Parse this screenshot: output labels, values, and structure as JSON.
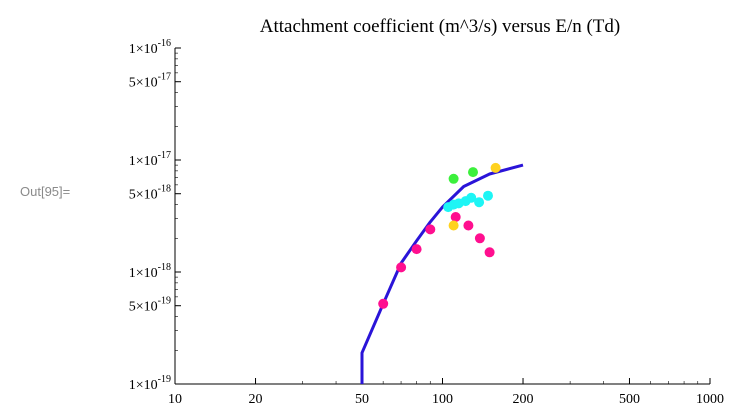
{
  "cell": {
    "out_label": "Out[95]="
  },
  "chart_data": {
    "type": "scatter",
    "title": "Attachment coefficient (m^3/s) versus E/n (Td)",
    "xlabel": "",
    "ylabel": "",
    "x_scale": "log",
    "y_scale": "log",
    "xlim": [
      10,
      1000
    ],
    "ylim": [
      1e-19,
      1e-16
    ],
    "x_ticks": [
      {
        "value": 10,
        "label": "10"
      },
      {
        "value": 20,
        "label": "20"
      },
      {
        "value": 50,
        "label": "50"
      },
      {
        "value": 100,
        "label": "100"
      },
      {
        "value": 200,
        "label": "200"
      },
      {
        "value": 500,
        "label": "500"
      },
      {
        "value": 1000,
        "label": "1000"
      }
    ],
    "y_ticks": [
      {
        "value": 1e-19,
        "mantissa": "1",
        "exponent": "-19"
      },
      {
        "value": 5e-19,
        "mantissa": "5",
        "exponent": "-19"
      },
      {
        "value": 1e-18,
        "mantissa": "1",
        "exponent": "-18"
      },
      {
        "value": 5e-18,
        "mantissa": "5",
        "exponent": "-18"
      },
      {
        "value": 1e-17,
        "mantissa": "1",
        "exponent": "-17"
      },
      {
        "value": 5e-17,
        "mantissa": "5",
        "exponent": "-17"
      },
      {
        "value": 1e-16,
        "mantissa": "1",
        "exponent": "-16"
      }
    ],
    "grid": false,
    "colors": {
      "line": "#2a14d8",
      "axis": "#000000"
    },
    "line": {
      "x": [
        50,
        50,
        60,
        70,
        80,
        90,
        100,
        120,
        150,
        200
      ],
      "y": [
        1e-19,
        1.9e-19,
        5.2e-19,
        1.2e-18,
        1.9e-18,
        2.8e-18,
        3.8e-18,
        5.8e-18,
        7.5e-18,
        9e-18
      ]
    },
    "series": [
      {
        "color": "#ff0f8f",
        "x": [
          60,
          70,
          80,
          90,
          112,
          125,
          138,
          150
        ],
        "y": [
          5.2e-19,
          1.1e-18,
          1.6e-18,
          2.4e-18,
          3.1e-18,
          2.6e-18,
          2e-18,
          1.5e-18
        ]
      },
      {
        "color": "#1ef5f5",
        "x": [
          105,
          110,
          115,
          122,
          128,
          137,
          148
        ],
        "y": [
          3.8e-18,
          4e-18,
          4.1e-18,
          4.3e-18,
          4.6e-18,
          4.2e-18,
          4.8e-18
        ]
      },
      {
        "color": "#3cf03c",
        "x": [
          110,
          130
        ],
        "y": [
          6.8e-18,
          7.8e-18
        ]
      },
      {
        "color": "#ffd21f",
        "x": [
          110,
          158
        ],
        "y": [
          2.6e-18,
          8.5e-18
        ]
      }
    ]
  }
}
